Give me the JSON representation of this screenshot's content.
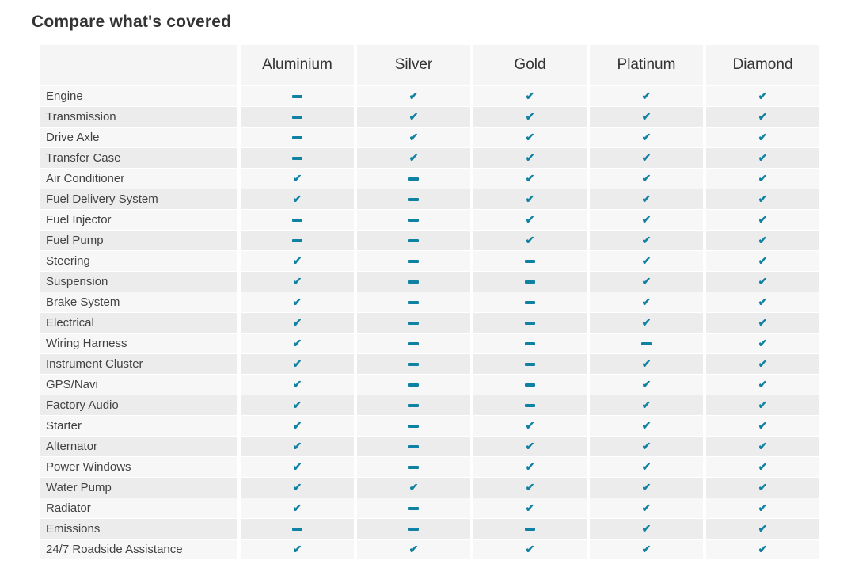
{
  "page": {
    "title": "Compare what's covered"
  },
  "table": {
    "plans": [
      "Aluminium",
      "Silver",
      "Gold",
      "Platinum",
      "Diamond"
    ],
    "icons": {
      "covered": "✔",
      "not_covered": "dash-bar"
    },
    "rows": [
      {
        "label": "Engine",
        "coverage": [
          false,
          true,
          true,
          true,
          true
        ]
      },
      {
        "label": "Transmission",
        "coverage": [
          false,
          true,
          true,
          true,
          true
        ]
      },
      {
        "label": "Drive Axle",
        "coverage": [
          false,
          true,
          true,
          true,
          true
        ]
      },
      {
        "label": "Transfer Case",
        "coverage": [
          false,
          true,
          true,
          true,
          true
        ]
      },
      {
        "label": "Air Conditioner",
        "coverage": [
          true,
          false,
          true,
          true,
          true
        ]
      },
      {
        "label": "Fuel Delivery System",
        "coverage": [
          true,
          false,
          true,
          true,
          true
        ]
      },
      {
        "label": "Fuel Injector",
        "coverage": [
          false,
          false,
          true,
          true,
          true
        ]
      },
      {
        "label": "Fuel Pump",
        "coverage": [
          false,
          false,
          true,
          true,
          true
        ]
      },
      {
        "label": "Steering",
        "coverage": [
          true,
          false,
          false,
          true,
          true
        ]
      },
      {
        "label": "Suspension",
        "coverage": [
          true,
          false,
          false,
          true,
          true
        ]
      },
      {
        "label": "Brake System",
        "coverage": [
          true,
          false,
          false,
          true,
          true
        ]
      },
      {
        "label": "Electrical",
        "coverage": [
          true,
          false,
          false,
          true,
          true
        ]
      },
      {
        "label": "Wiring Harness",
        "coverage": [
          true,
          false,
          false,
          false,
          true
        ]
      },
      {
        "label": "Instrument Cluster",
        "coverage": [
          true,
          false,
          false,
          true,
          true
        ]
      },
      {
        "label": "GPS/Navi",
        "coverage": [
          true,
          false,
          false,
          true,
          true
        ]
      },
      {
        "label": "Factory Audio",
        "coverage": [
          true,
          false,
          false,
          true,
          true
        ]
      },
      {
        "label": "Starter",
        "coverage": [
          true,
          false,
          true,
          true,
          true
        ]
      },
      {
        "label": "Alternator",
        "coverage": [
          true,
          false,
          true,
          true,
          true
        ]
      },
      {
        "label": "Power Windows",
        "coverage": [
          true,
          false,
          true,
          true,
          true
        ]
      },
      {
        "label": "Water Pump",
        "coverage": [
          true,
          true,
          true,
          true,
          true
        ]
      },
      {
        "label": "Radiator",
        "coverage": [
          true,
          false,
          true,
          true,
          true
        ]
      },
      {
        "label": "Emissions",
        "coverage": [
          false,
          false,
          false,
          true,
          true
        ]
      },
      {
        "label": "24/7 Roadside Assistance",
        "coverage": [
          true,
          true,
          true,
          true,
          true
        ]
      }
    ]
  },
  "colors": {
    "accent_check": "#0f81a3",
    "header_bg": "#f5f5f5",
    "row_odd_bg": "#f7f7f7",
    "row_even_bg": "#ececec",
    "title_text": "#333333",
    "label_text": "#424242"
  }
}
